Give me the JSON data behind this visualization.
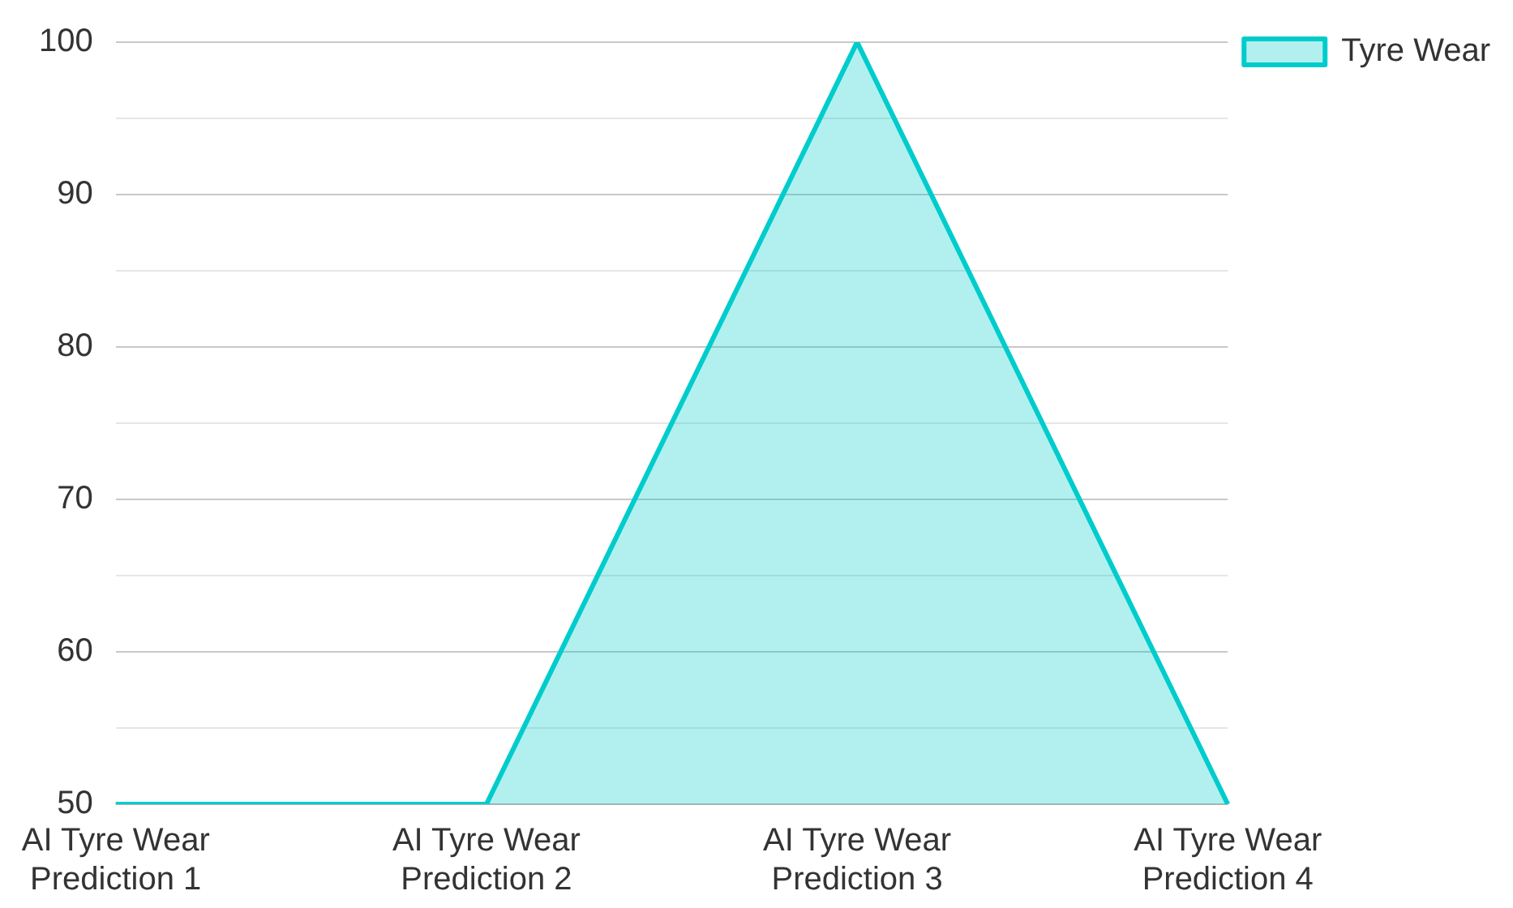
{
  "chart_data": {
    "type": "area",
    "categories": [
      "AI Tyre Wear Prediction 1",
      "AI Tyre Wear Prediction 2",
      "AI Tyre Wear Prediction 3",
      "AI Tyre Wear Prediction 4"
    ],
    "series": [
      {
        "name": "Tyre Wear",
        "color": "#00cccc",
        "values": [
          50,
          50,
          100,
          50
        ]
      }
    ],
    "ylim": [
      50,
      100
    ],
    "yticks": [
      50,
      {
        "value": 55,
        "label": null
      },
      60,
      {
        "value": 65,
        "label": null
      },
      70,
      {
        "value": 75,
        "label": null
      },
      80,
      {
        "value": 85,
        "label": null
      },
      90,
      {
        "value": 95,
        "label": null
      },
      100
    ],
    "grid": "y",
    "legend": "top right"
  }
}
